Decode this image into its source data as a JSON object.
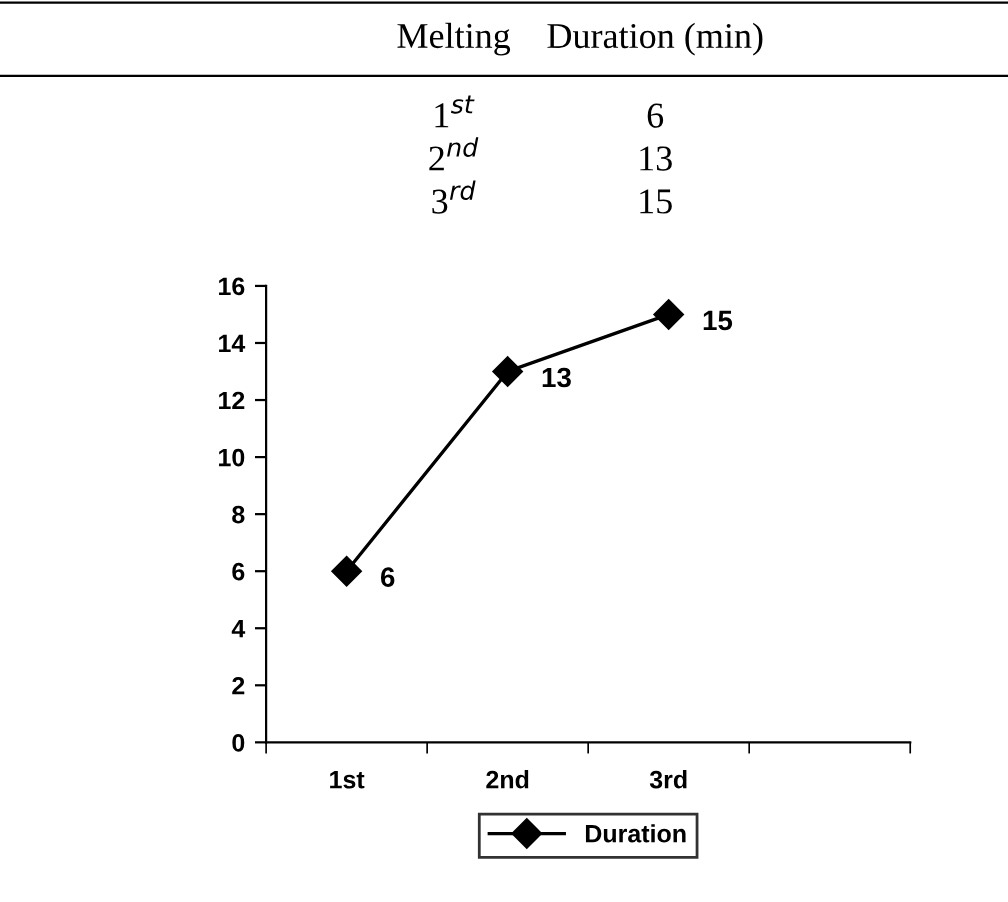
{
  "chart_data": [
    {
      "type": "other",
      "annotations": [
        "Melting",
        "Duration (min)",
        "1$^{st}$",
        "6",
        "2$^{nd}$",
        "13",
        "3$^{rd}$",
        "15"
      ]
    },
    {
      "type": "line",
      "categories": [
        "1st",
        "2nd",
        "3rd",
        null
      ],
      "series": [
        {
          "name": "Duration",
          "color": "#000000",
          "values": [
            6,
            13,
            15,
            null
          ]
        }
      ],
      "ylim": [
        0,
        16
      ],
      "yticks": [
        0,
        2,
        4,
        6,
        8,
        10,
        12,
        14,
        16
      ],
      "data_labels": true,
      "legend": "bottom",
      "marker": "diamond",
      "line_style": "solid",
      "grid": false
    }
  ]
}
